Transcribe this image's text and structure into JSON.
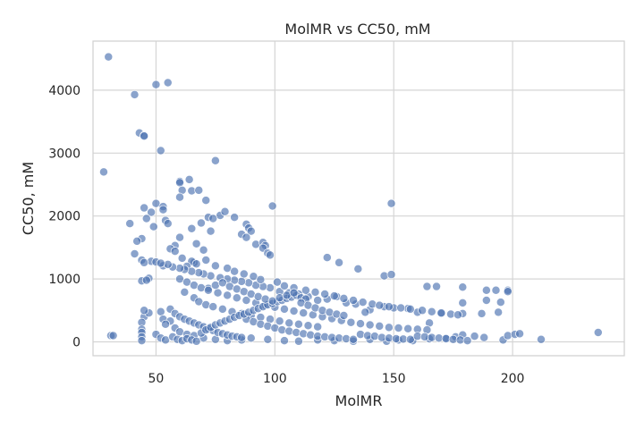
{
  "chart_data": {
    "type": "scatter",
    "title": "MolMR vs CC50, mM",
    "xlabel": "MolMR",
    "ylabel": "CC50, mM",
    "xlim": [
      23.5,
      247
    ],
    "ylim": [
      -220,
      4780
    ],
    "xticks": [
      50,
      100,
      150,
      200
    ],
    "yticks": [
      0,
      1000,
      2000,
      3000,
      4000
    ],
    "grid": true,
    "legend": "none",
    "point_color": "#4c72b0",
    "point_opacity": 0.65,
    "points": [
      [
        30,
        4530
      ],
      [
        41,
        3930
      ],
      [
        50,
        4090
      ],
      [
        55,
        4120
      ],
      [
        28,
        2700
      ],
      [
        43,
        3320
      ],
      [
        45,
        3280
      ],
      [
        45,
        3270
      ],
      [
        52,
        3040
      ],
      [
        75,
        2880
      ],
      [
        60,
        2550
      ],
      [
        60,
        2530
      ],
      [
        64,
        2580
      ],
      [
        61,
        2410
      ],
      [
        65,
        2400
      ],
      [
        68,
        2410
      ],
      [
        71,
        2250
      ],
      [
        60,
        2300
      ],
      [
        50,
        2200
      ],
      [
        53,
        2150
      ],
      [
        53,
        2100
      ],
      [
        45,
        2130
      ],
      [
        48,
        2060
      ],
      [
        46,
        1960
      ],
      [
        39,
        1880
      ],
      [
        49,
        1830
      ],
      [
        54,
        1930
      ],
      [
        55,
        1880
      ],
      [
        72,
        1980
      ],
      [
        73,
        1760
      ],
      [
        77,
        2010
      ],
      [
        79,
        2070
      ],
      [
        74,
        1960
      ],
      [
        83,
        1980
      ],
      [
        88,
        1870
      ],
      [
        89,
        1810
      ],
      [
        90,
        1760
      ],
      [
        86,
        1710
      ],
      [
        88,
        1660
      ],
      [
        99,
        2160
      ],
      [
        69,
        1890
      ],
      [
        65,
        1800
      ],
      [
        60,
        1660
      ],
      [
        58,
        1530
      ],
      [
        56,
        1480
      ],
      [
        58,
        1440
      ],
      [
        44,
        1640
      ],
      [
        42,
        1600
      ],
      [
        44,
        1300
      ],
      [
        41,
        1400
      ],
      [
        48,
        1280
      ],
      [
        50,
        1270
      ],
      [
        53,
        1210
      ],
      [
        45,
        1260
      ],
      [
        47,
        1010
      ],
      [
        44,
        970
      ],
      [
        46,
        980
      ],
      [
        61,
        1330
      ],
      [
        67,
        1560
      ],
      [
        70,
        1460
      ],
      [
        71,
        1300
      ],
      [
        66,
        1260
      ],
      [
        65,
        1280
      ],
      [
        67,
        1240
      ],
      [
        63,
        1200
      ],
      [
        75,
        1210
      ],
      [
        80,
        1170
      ],
      [
        92,
        1550
      ],
      [
        95,
        1580
      ],
      [
        96,
        1530
      ],
      [
        95,
        1490
      ],
      [
        97,
        1410
      ],
      [
        98,
        1380
      ],
      [
        122,
        1340
      ],
      [
        127,
        1260
      ],
      [
        135,
        1160
      ],
      [
        146,
        1050
      ],
      [
        149,
        1070
      ],
      [
        149,
        2200
      ],
      [
        45,
        400
      ],
      [
        44,
        310
      ],
      [
        44,
        200
      ],
      [
        44,
        150
      ],
      [
        44,
        80
      ],
      [
        44,
        20
      ],
      [
        31,
        100
      ],
      [
        32,
        100
      ],
      [
        47,
        460
      ],
      [
        45,
        500
      ],
      [
        52,
        480
      ],
      [
        53,
        360
      ],
      [
        56,
        330
      ],
      [
        54,
        280
      ],
      [
        58,
        220
      ],
      [
        60,
        160
      ],
      [
        63,
        120
      ],
      [
        66,
        100
      ],
      [
        70,
        60
      ],
      [
        75,
        40
      ],
      [
        80,
        20
      ],
      [
        86,
        30
      ],
      [
        90,
        60
      ],
      [
        97,
        40
      ],
      [
        104,
        20
      ],
      [
        110,
        10
      ],
      [
        118,
        30
      ],
      [
        125,
        20
      ],
      [
        133,
        10
      ],
      [
        140,
        40
      ],
      [
        147,
        10
      ],
      [
        152,
        30
      ],
      [
        158,
        20
      ],
      [
        165,
        50
      ],
      [
        172,
        60
      ],
      [
        176,
        80
      ],
      [
        179,
        110
      ],
      [
        184,
        90
      ],
      [
        188,
        70
      ],
      [
        196,
        30
      ],
      [
        198,
        100
      ],
      [
        201,
        120
      ],
      [
        203,
        130
      ],
      [
        212,
        40
      ],
      [
        236,
        150
      ],
      [
        194,
        470
      ],
      [
        195,
        630
      ],
      [
        193,
        820
      ],
      [
        198,
        820
      ],
      [
        198,
        800
      ],
      [
        189,
        820
      ],
      [
        189,
        660
      ],
      [
        187,
        450
      ],
      [
        179,
        450
      ],
      [
        179,
        870
      ],
      [
        179,
        620
      ],
      [
        168,
        880
      ],
      [
        164,
        880
      ],
      [
        170,
        450
      ],
      [
        165,
        300
      ],
      [
        160,
        470
      ],
      [
        156,
        530
      ],
      [
        150,
        540
      ],
      [
        146,
        560
      ],
      [
        140,
        510
      ],
      [
        138,
        470
      ],
      [
        134,
        600
      ],
      [
        130,
        620
      ],
      [
        126,
        720
      ],
      [
        122,
        680
      ],
      [
        118,
        660
      ],
      [
        114,
        720
      ],
      [
        110,
        760
      ],
      [
        106,
        780
      ],
      [
        102,
        800
      ],
      [
        98,
        860
      ],
      [
        95,
        880
      ],
      [
        92,
        900
      ],
      [
        89,
        940
      ],
      [
        86,
        960
      ],
      [
        83,
        980
      ],
      [
        80,
        1000
      ],
      [
        77,
        1020
      ],
      [
        73,
        1050
      ],
      [
        70,
        1080
      ],
      [
        68,
        1100
      ],
      [
        65,
        1120
      ],
      [
        62,
        1150
      ],
      [
        60,
        1170
      ],
      [
        57,
        1190
      ],
      [
        55,
        1230
      ],
      [
        52,
        1250
      ],
      [
        83,
        1120
      ],
      [
        87,
        1080
      ],
      [
        91,
        1040
      ],
      [
        94,
        990
      ],
      [
        101,
        950
      ],
      [
        104,
        890
      ],
      [
        108,
        860
      ],
      [
        113,
        820
      ],
      [
        117,
        790
      ],
      [
        121,
        760
      ],
      [
        125,
        730
      ],
      [
        129,
        690
      ],
      [
        133,
        660
      ],
      [
        137,
        630
      ],
      [
        141,
        600
      ],
      [
        144,
        580
      ],
      [
        148,
        560
      ],
      [
        153,
        540
      ],
      [
        157,
        520
      ],
      [
        162,
        500
      ],
      [
        166,
        480
      ],
      [
        170,
        460
      ],
      [
        174,
        440
      ],
      [
        177,
        430
      ],
      [
        72,
        850
      ],
      [
        76,
        780
      ],
      [
        80,
        740
      ],
      [
        84,
        700
      ],
      [
        88,
        660
      ],
      [
        92,
        620
      ],
      [
        96,
        580
      ],
      [
        100,
        550
      ],
      [
        104,
        520
      ],
      [
        108,
        490
      ],
      [
        112,
        460
      ],
      [
        116,
        430
      ],
      [
        120,
        400
      ],
      [
        124,
        370
      ],
      [
        128,
        340
      ],
      [
        132,
        310
      ],
      [
        136,
        290
      ],
      [
        140,
        270
      ],
      [
        144,
        250
      ],
      [
        148,
        230
      ],
      [
        152,
        220
      ],
      [
        156,
        210
      ],
      [
        160,
        200
      ],
      [
        164,
        190
      ],
      [
        62,
        790
      ],
      [
        66,
        700
      ],
      [
        68,
        640
      ],
      [
        71,
        590
      ],
      [
        74,
        560
      ],
      [
        78,
        520
      ],
      [
        82,
        480
      ],
      [
        86,
        450
      ],
      [
        90,
        420
      ],
      [
        94,
        390
      ],
      [
        98,
        360
      ],
      [
        102,
        330
      ],
      [
        106,
        300
      ],
      [
        110,
        280
      ],
      [
        114,
        260
      ],
      [
        118,
        240
      ],
      [
        56,
        520
      ],
      [
        58,
        450
      ],
      [
        60,
        400
      ],
      [
        62,
        360
      ],
      [
        64,
        330
      ],
      [
        66,
        300
      ],
      [
        68,
        270
      ],
      [
        70,
        240
      ],
      [
        72,
        210
      ],
      [
        74,
        180
      ],
      [
        76,
        150
      ],
      [
        78,
        130
      ],
      [
        80,
        110
      ],
      [
        82,
        90
      ],
      [
        84,
        80
      ],
      [
        86,
        70
      ],
      [
        88,
        360
      ],
      [
        91,
        320
      ],
      [
        94,
        280
      ],
      [
        97,
        250
      ],
      [
        100,
        220
      ],
      [
        103,
        190
      ],
      [
        106,
        170
      ],
      [
        109,
        150
      ],
      [
        112,
        130
      ],
      [
        115,
        110
      ],
      [
        118,
        90
      ],
      [
        121,
        80
      ],
      [
        124,
        70
      ],
      [
        127,
        60
      ],
      [
        130,
        50
      ],
      [
        133,
        40
      ],
      [
        136,
        120
      ],
      [
        139,
        100
      ],
      [
        142,
        90
      ],
      [
        145,
        70
      ],
      [
        148,
        60
      ],
      [
        151,
        50
      ],
      [
        154,
        45
      ],
      [
        157,
        40
      ],
      [
        160,
        90
      ],
      [
        163,
        80
      ],
      [
        166,
        70
      ],
      [
        169,
        60
      ],
      [
        172,
        50
      ],
      [
        175,
        40
      ],
      [
        178,
        30
      ],
      [
        181,
        20
      ],
      [
        50,
        120
      ],
      [
        52,
        60
      ],
      [
        54,
        30
      ],
      [
        57,
        80
      ],
      [
        59,
        40
      ],
      [
        61,
        20
      ],
      [
        63,
        50
      ],
      [
        65,
        30
      ],
      [
        67,
        10
      ],
      [
        69,
        140
      ],
      [
        71,
        190
      ],
      [
        73,
        230
      ],
      [
        75,
        270
      ],
      [
        77,
        300
      ],
      [
        79,
        330
      ],
      [
        81,
        360
      ],
      [
        83,
        390
      ],
      [
        85,
        420
      ],
      [
        87,
        440
      ],
      [
        89,
        470
      ],
      [
        91,
        500
      ],
      [
        93,
        530
      ],
      [
        95,
        560
      ],
      [
        97,
        590
      ],
      [
        99,
        610
      ],
      [
        101,
        640
      ],
      [
        103,
        660
      ],
      [
        105,
        690
      ],
      [
        107,
        710
      ],
      [
        109,
        740
      ],
      [
        111,
        700
      ],
      [
        113,
        680
      ],
      [
        60,
        1000
      ],
      [
        63,
        950
      ],
      [
        66,
        900
      ],
      [
        69,
        860
      ],
      [
        72,
        820
      ],
      [
        75,
        900
      ],
      [
        78,
        940
      ],
      [
        81,
        880
      ],
      [
        84,
        840
      ],
      [
        87,
        800
      ],
      [
        90,
        760
      ],
      [
        93,
        720
      ],
      [
        96,
        680
      ],
      [
        99,
        650
      ],
      [
        102,
        700
      ],
      [
        105,
        740
      ],
      [
        108,
        780
      ],
      [
        111,
        620
      ],
      [
        114,
        580
      ],
      [
        117,
        540
      ],
      [
        120,
        500
      ],
      [
        123,
        470
      ],
      [
        126,
        440
      ],
      [
        129,
        420
      ]
    ]
  }
}
